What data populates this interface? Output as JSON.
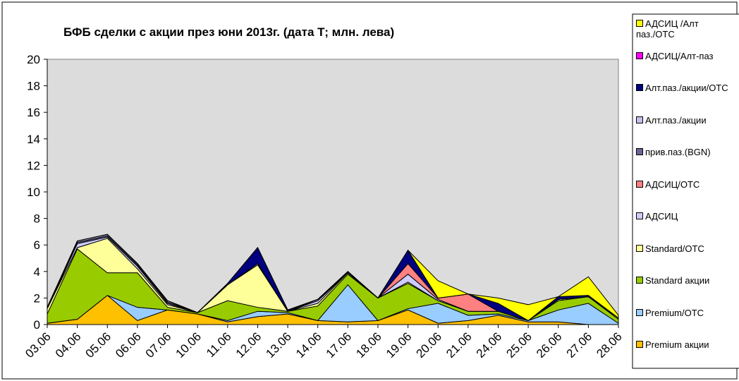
{
  "chart_data": {
    "type": "stacked_area",
    "title": "БФБ сделки с акции през юни 2013г. (дата Т; млн. лева)",
    "categories": [
      "03.06",
      "04.06",
      "05.06",
      "06.06",
      "07.06",
      "10.06",
      "11.06",
      "12.06",
      "13.06",
      "14.06",
      "17.06",
      "18.06",
      "19.06",
      "20.06",
      "21.06",
      "24.06",
      "25.06",
      "26.06",
      "27.06",
      "28.06"
    ],
    "ylim": [
      0,
      20
    ],
    "yticks": [
      0,
      2,
      4,
      6,
      8,
      10,
      12,
      14,
      16,
      18,
      20
    ],
    "series": [
      {
        "name": "Premium акции",
        "color": "#ffc000",
        "values": [
          0.1,
          0.4,
          2.2,
          0.3,
          1.1,
          0.8,
          0.2,
          0.6,
          0.8,
          0.3,
          0.2,
          0.3,
          1.1,
          0.1,
          0.3,
          0.7,
          0.2,
          0.2,
          0.0,
          0.0
        ]
      },
      {
        "name": "Premium/OTC",
        "color": "#99ccff",
        "values": [
          0,
          0,
          0,
          1.0,
          0,
          0,
          0.1,
          0.4,
          0.1,
          0,
          2.8,
          0,
          0.1,
          1.5,
          0.4,
          0.1,
          0.1,
          0.9,
          1.6,
          0.1
        ]
      },
      {
        "name": "Standard акции",
        "color": "#99cc00",
        "values": [
          0.7,
          5.3,
          1.7,
          2.6,
          0.2,
          0.1,
          1.5,
          0.3,
          0.1,
          1.1,
          0.8,
          1.7,
          1.9,
          0.2,
          0.3,
          0.2,
          0,
          0.7,
          0.5,
          0.3
        ]
      },
      {
        "name": "Standard/OTC",
        "color": "#ffff99",
        "values": [
          0.4,
          0.1,
          2.6,
          0.3,
          0.2,
          0,
          1.2,
          3.2,
          0,
          0.2,
          0.1,
          0,
          0.1,
          0,
          0,
          0,
          0,
          0.1,
          0,
          0.1
        ]
      },
      {
        "name": "АДСИЦ",
        "color": "#ccccff",
        "values": [
          0,
          0.3,
          0.1,
          0.2,
          0.1,
          0,
          0,
          0.1,
          0,
          0.2,
          0,
          0,
          0.6,
          0.1,
          0,
          0,
          0,
          0,
          0,
          0
        ]
      },
      {
        "name": "АДСИЦ/OTC",
        "color": "#ff8080",
        "values": [
          0,
          0,
          0,
          0,
          0,
          0,
          0,
          0,
          0,
          0,
          0,
          0,
          0.8,
          0.1,
          1.3,
          0,
          0,
          0,
          0,
          0
        ]
      },
      {
        "name": "прив.паз.(BGN)",
        "color": "#666699",
        "values": [
          0,
          0.1,
          0.1,
          0.1,
          0.1,
          0,
          0,
          0,
          0,
          0,
          0,
          0,
          0,
          0,
          0,
          0,
          0,
          0,
          0,
          0
        ]
      },
      {
        "name": "Алт.паз./акции",
        "color": "#c0c0f0",
        "values": [
          0,
          0.1,
          0.1,
          0.1,
          0.1,
          0,
          0,
          0,
          0,
          0.1,
          0,
          0,
          0,
          0,
          0,
          0,
          0,
          0,
          0,
          0
        ]
      },
      {
        "name": "Алт.паз./акции/ОTC",
        "color": "#000080",
        "values": [
          0.1,
          0,
          0,
          0,
          0,
          0,
          0.1,
          1.2,
          0.1,
          0,
          0.1,
          0,
          1.0,
          0,
          0,
          0.6,
          0,
          0.2,
          0.1,
          0
        ]
      },
      {
        "name": "АДСИЦ/Алт-паз",
        "color": "#ff00ff",
        "values": [
          0,
          0,
          0,
          0,
          0,
          0,
          0,
          0,
          0,
          0,
          0,
          0,
          0,
          0,
          0,
          0,
          0,
          0,
          0,
          0
        ]
      },
      {
        "name": "АДСИЦ /Алт паз./OTC",
        "color": "#ffff00",
        "values": [
          0,
          0,
          0,
          0,
          0,
          0,
          0,
          0,
          0,
          0,
          0,
          0,
          0,
          1.3,
          0,
          0.4,
          1.2,
          0,
          1.4,
          0.2
        ]
      }
    ]
  }
}
